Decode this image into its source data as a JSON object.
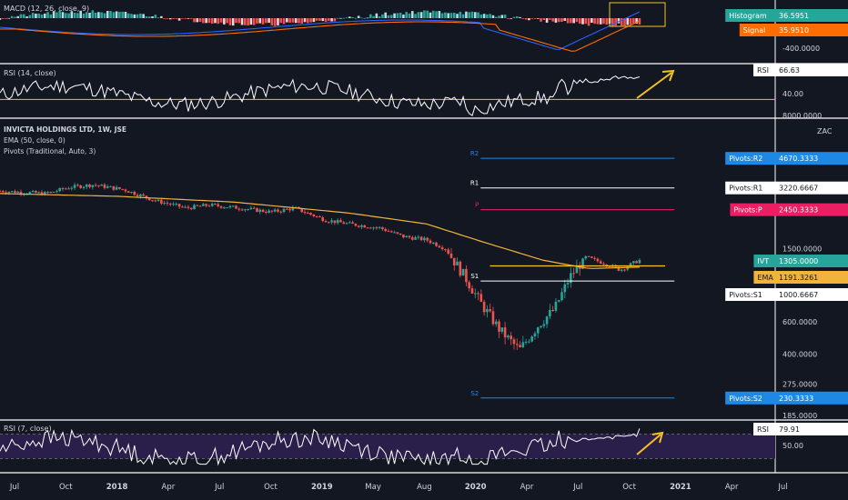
{
  "colors": {
    "background": "#131722",
    "up": "#26a69a",
    "down": "#ef5350",
    "ema": "#f2b33a",
    "rsi_line": "#ffffff",
    "rsi_band": "#2a1e4a",
    "macd_line": "#2962ff",
    "signal_line": "#ff6d00",
    "pivot_r2": "#1e88e5",
    "pivot_r1": "#ffffff",
    "pivot_p": "#e91e63",
    "pivot_s1": "#ffffff",
    "pivot_s2": "#1e88e5",
    "annotation": "#f6c026",
    "axis_text": "#d1d4dc"
  },
  "panels": {
    "macd": {
      "title": "MACD (12, 26, close, 9)",
      "badges": [
        {
          "label": "Histogram",
          "value": "36.5951",
          "color": "#26a69a"
        },
        {
          "label": "Signal",
          "value": "35.9510",
          "color": "#ff6d00"
        }
      ],
      "axis_label": "-400.0000"
    },
    "rsi14": {
      "title": "RSI (14, close)",
      "badge_label": "RSI",
      "badge_value": "66.63",
      "axis_label": "40.00"
    },
    "main": {
      "title_line1": "INVICTA HOLDINGS LTD, 1W, JSE",
      "title_line2": "EMA (50, close, 0)",
      "title_line3": "Pivots (Traditional, Auto, 3)",
      "currency": "ZAC",
      "axis_labels": [
        "8000.0000",
        "1500.0000",
        "600.0000",
        "400.0000",
        "275.0000",
        "185.0000"
      ],
      "pivot_labels": {
        "r2": "R2",
        "r1": "R1",
        "p": "P",
        "s1": "S1",
        "s2": "S2"
      },
      "badges": [
        {
          "label": "Pivots:R2",
          "value": "4670.3333",
          "color": "#1e88e5",
          "text": "#ffffff"
        },
        {
          "label": "Pivots:R1",
          "value": "3220.6667",
          "color": "#ffffff",
          "text": "#131722"
        },
        {
          "label": "Pivots:P",
          "value": "2450.3333",
          "color": "#e91e63",
          "text": "#ffffff"
        },
        {
          "label": "IVT",
          "value": "1305.0000",
          "color": "#26a69a",
          "text": "#ffffff"
        },
        {
          "label": "EMA",
          "value": "1191.3261",
          "color": "#f2b33a",
          "text": "#131722"
        },
        {
          "label": "Pivots:S1",
          "value": "1000.6667",
          "color": "#ffffff",
          "text": "#131722"
        },
        {
          "label": "Pivots:S2",
          "value": "230.3333",
          "color": "#1e88e5",
          "text": "#ffffff"
        }
      ]
    },
    "rsi7": {
      "title": "RSI (7, close)",
      "badge_label": "RSI",
      "badge_value": "79.91",
      "axis_label": "50.00"
    }
  },
  "time_axis": {
    "labels": [
      "Jul",
      "Oct",
      "2018",
      "Apr",
      "Jul",
      "Oct",
      "2019",
      "May",
      "Aug",
      "2020",
      "Apr",
      "Jul",
      "Oct",
      "2021",
      "Apr",
      "Jul"
    ]
  },
  "chart_data": {
    "type": "candlestick",
    "scale": "log",
    "price_ylim": [
      185,
      8000
    ],
    "x_start": "2017-07",
    "x_end": "2021-08",
    "price_path": [
      [
        0,
        3100
      ],
      [
        0.06,
        3000
      ],
      [
        0.09,
        3250
      ],
      [
        0.12,
        3350
      ],
      [
        0.16,
        3150
      ],
      [
        0.2,
        2750
      ],
      [
        0.24,
        2500
      ],
      [
        0.27,
        2600
      ],
      [
        0.31,
        2500
      ],
      [
        0.35,
        2380
      ],
      [
        0.38,
        2500
      ],
      [
        0.42,
        2150
      ],
      [
        0.45,
        2050
      ],
      [
        0.49,
        1950
      ],
      [
        0.52,
        1750
      ],
      [
        0.55,
        1680
      ],
      [
        0.575,
        1500
      ],
      [
        0.6,
        1050
      ],
      [
        0.62,
        760
      ],
      [
        0.645,
        540
      ],
      [
        0.67,
        420
      ],
      [
        0.695,
        580
      ],
      [
        0.715,
        700
      ],
      [
        0.735,
        1050
      ],
      [
        0.755,
        1350
      ],
      [
        0.78,
        1250
      ],
      [
        0.8,
        1150
      ],
      [
        0.825,
        1305
      ]
    ],
    "ema50_path": [
      [
        0,
        3000
      ],
      [
        0.15,
        2900
      ],
      [
        0.3,
        2700
      ],
      [
        0.45,
        2350
      ],
      [
        0.55,
        2050
      ],
      [
        0.62,
        1650
      ],
      [
        0.7,
        1300
      ],
      [
        0.76,
        1170
      ],
      [
        0.825,
        1191
      ]
    ],
    "pivots": {
      "R2": 4670.3333,
      "R1": 3220.6667,
      "P": 2450.3333,
      "S1": 1000.6667,
      "S2": 230.3333
    },
    "last_price": 1305.0,
    "ema50_last": 1191.3261,
    "macd": {
      "histogram_last": 36.5951,
      "signal_last": 35.951
    },
    "rsi14_last": 66.63,
    "rsi14_level_line": 40,
    "rsi7_last": 79.91,
    "rsi7_level_line": 50
  }
}
